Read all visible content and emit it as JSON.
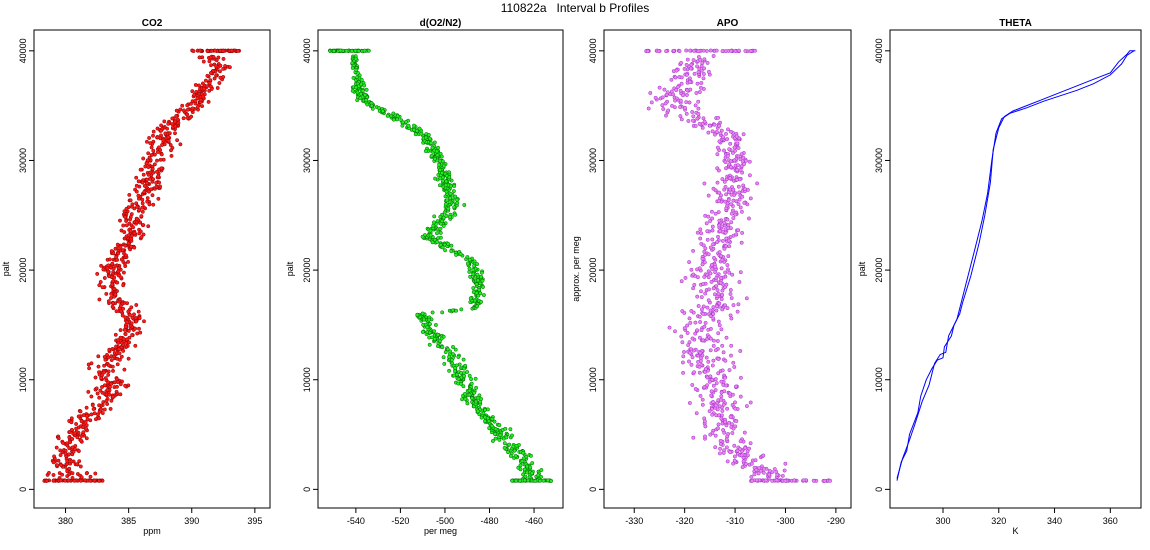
{
  "title": "110822a   Interval b Profiles",
  "chart_data": [
    {
      "type": "scatter",
      "title": "CO2",
      "xlabel": "ppm",
      "ylabel": "palt",
      "xlim": [
        377.5,
        396.2
      ],
      "ylim": [
        -1700,
        41900
      ],
      "xticks": [
        380,
        385,
        390,
        395
      ],
      "yticks": [
        0,
        10000,
        20000,
        30000,
        40000
      ],
      "colors": {
        "fill": "#ff1a1a",
        "stroke": "#8b0000"
      },
      "profile": [
        {
          "alt": 800,
          "mean": 380.0,
          "spread": 2.0
        },
        {
          "alt": 3000,
          "mean": 380.2,
          "spread": 1.2
        },
        {
          "alt": 5000,
          "mean": 380.6,
          "spread": 1.2
        },
        {
          "alt": 7500,
          "mean": 382.7,
          "spread": 1.2
        },
        {
          "alt": 9500,
          "mean": 383.6,
          "spread": 1.3
        },
        {
          "alt": 11000,
          "mean": 383.3,
          "spread": 1.3
        },
        {
          "alt": 13500,
          "mean": 384.5,
          "spread": 0.9
        },
        {
          "alt": 15500,
          "mean": 385.5,
          "spread": 1.0
        },
        {
          "alt": 17500,
          "mean": 383.7,
          "spread": 1.0
        },
        {
          "alt": 20500,
          "mean": 383.6,
          "spread": 1.0
        },
        {
          "alt": 23000,
          "mean": 385.3,
          "spread": 1.0
        },
        {
          "alt": 25500,
          "mean": 385.6,
          "spread": 1.0
        },
        {
          "alt": 27500,
          "mean": 386.5,
          "spread": 1.0
        },
        {
          "alt": 30000,
          "mean": 387.2,
          "spread": 1.0
        },
        {
          "alt": 32500,
          "mean": 387.8,
          "spread": 1.0
        },
        {
          "alt": 34500,
          "mean": 389.7,
          "spread": 0.9
        },
        {
          "alt": 36500,
          "mean": 391.0,
          "spread": 0.9
        },
        {
          "alt": 38500,
          "mean": 392.2,
          "spread": 0.9
        },
        {
          "alt": 39500,
          "mean": 391.7,
          "spread": 0.9
        }
      ],
      "edge_rows": [
        {
          "alt": 40000,
          "x_from": 390.0,
          "x_to": 393.9
        },
        {
          "alt": 800,
          "x_from": 378.3,
          "x_to": 383.0
        }
      ]
    },
    {
      "type": "scatter",
      "title": "d(O2/N2)",
      "xlabel": "per meg",
      "ylabel": "palt",
      "xlim": [
        -557,
        -447
      ],
      "ylim": [
        -1700,
        41900
      ],
      "xticks": [
        -540,
        -520,
        -500,
        -480,
        -460
      ],
      "yticks": [
        0,
        10000,
        20000,
        30000,
        40000
      ],
      "colors": {
        "fill": "#22ee22",
        "stroke": "#006400"
      },
      "profile": [
        {
          "alt": 800,
          "mean": -459,
          "spread": 5
        },
        {
          "alt": 3000,
          "mean": -466,
          "spread": 5
        },
        {
          "alt": 5500,
          "mean": -477,
          "spread": 4
        },
        {
          "alt": 7500,
          "mean": -485,
          "spread": 4
        },
        {
          "alt": 10000,
          "mean": -492,
          "spread": 4
        },
        {
          "alt": 12500,
          "mean": -498,
          "spread": 4
        },
        {
          "alt": 14500,
          "mean": -506,
          "spread": 4
        },
        {
          "alt": 16000,
          "mean": -511,
          "spread": 3
        },
        {
          "alt": 16500,
          "mean": -487,
          "spread": 2
        },
        {
          "alt": 19000,
          "mean": -485,
          "spread": 3
        },
        {
          "alt": 21000,
          "mean": -489,
          "spread": 3
        },
        {
          "alt": 23000,
          "mean": -507,
          "spread": 4
        },
        {
          "alt": 26000,
          "mean": -496,
          "spread": 4
        },
        {
          "alt": 29500,
          "mean": -502,
          "spread": 3
        },
        {
          "alt": 32000,
          "mean": -508,
          "spread": 3
        },
        {
          "alt": 33500,
          "mean": -518,
          "spread": 3
        },
        {
          "alt": 35500,
          "mean": -537,
          "spread": 3
        },
        {
          "alt": 38000,
          "mean": -540,
          "spread": 2
        },
        {
          "alt": 39500,
          "mean": -541,
          "spread": 1
        }
      ],
      "edge_rows": [
        {
          "alt": 40000,
          "x_from": -552,
          "x_to": -533
        },
        {
          "alt": 800,
          "x_from": -470,
          "x_to": -452
        }
      ]
    },
    {
      "type": "scatter",
      "title": "APO",
      "xlabel": "",
      "ylabel": "approx. per meg",
      "xlim": [
        -336,
        -287
      ],
      "ylim": [
        -1700,
        41900
      ],
      "xticks": [
        -330,
        -320,
        -310,
        -300,
        -290
      ],
      "yticks": [
        0,
        10000,
        20000,
        30000,
        40000
      ],
      "colors": {
        "fill": "#ee82ee",
        "stroke": "#9932cc"
      },
      "profile": [
        {
          "alt": 800,
          "mean": -302,
          "spread": 4
        },
        {
          "alt": 3000,
          "mean": -309,
          "spread": 5
        },
        {
          "alt": 5500,
          "mean": -312,
          "spread": 5
        },
        {
          "alt": 8500,
          "mean": -313,
          "spread": 5
        },
        {
          "alt": 11500,
          "mean": -315,
          "spread": 5
        },
        {
          "alt": 14500,
          "mean": -318,
          "spread": 5
        },
        {
          "alt": 17000,
          "mean": -313,
          "spread": 5
        },
        {
          "alt": 20000,
          "mean": -315,
          "spread": 4
        },
        {
          "alt": 23000,
          "mean": -313,
          "spread": 4
        },
        {
          "alt": 26000,
          "mean": -311,
          "spread": 4
        },
        {
          "alt": 29000,
          "mean": -310,
          "spread": 4
        },
        {
          "alt": 32000,
          "mean": -311,
          "spread": 3
        },
        {
          "alt": 35000,
          "mean": -322,
          "spread": 5
        },
        {
          "alt": 38000,
          "mean": -319,
          "spread": 4
        },
        {
          "alt": 39500,
          "mean": -317,
          "spread": 3
        }
      ],
      "edge_rows": [
        {
          "alt": 40000,
          "x_from": -328,
          "x_to": -306
        },
        {
          "alt": 800,
          "x_from": -307,
          "x_to": -291
        }
      ]
    },
    {
      "type": "line",
      "title": "THETA",
      "xlabel": "K",
      "ylabel": "palt",
      "xlim": [
        281,
        371
      ],
      "ylim": [
        -1700,
        41900
      ],
      "xticks": [
        300,
        320,
        340,
        360
      ],
      "yticks": [
        0,
        10000,
        20000,
        30000,
        40000
      ],
      "colors": {
        "line": "#0000ff"
      },
      "series": [
        {
          "x": [
            283.5,
            285,
            287,
            288,
            291,
            292,
            294,
            296,
            298,
            300,
            300.5,
            303,
            304,
            306,
            307,
            310,
            313,
            315,
            317,
            318,
            320,
            322,
            325,
            330,
            335,
            340,
            345,
            350,
            355,
            360,
            363,
            366,
            367,
            369
          ],
          "y": [
            800,
            2500,
            3500,
            5000,
            7000,
            8500,
            10000,
            11000,
            11800,
            12000,
            13000,
            14000,
            15000,
            16000,
            17000,
            19500,
            22500,
            25000,
            28000,
            31000,
            33000,
            34000,
            34500,
            35000,
            35500,
            36000,
            36500,
            37000,
            37500,
            38000,
            39000,
            39700,
            40000,
            40000
          ]
        },
        {
          "x": [
            283.5,
            285.5,
            288,
            290,
            292.5,
            295,
            296,
            297,
            299,
            301,
            302,
            305,
            306,
            308,
            311,
            314,
            316,
            317.5,
            319,
            321,
            324,
            330,
            336,
            342,
            348,
            354,
            360,
            364,
            366,
            368.5
          ],
          "y": [
            1000,
            2800,
            4500,
            6000,
            8000,
            9500,
            10500,
            11500,
            12300,
            12500,
            14000,
            15500,
            16500,
            18500,
            21500,
            24500,
            27000,
            30000,
            32500,
            33800,
            34300,
            34800,
            35400,
            35900,
            36400,
            37000,
            37800,
            38800,
            39600,
            40000
          ]
        }
      ]
    }
  ]
}
